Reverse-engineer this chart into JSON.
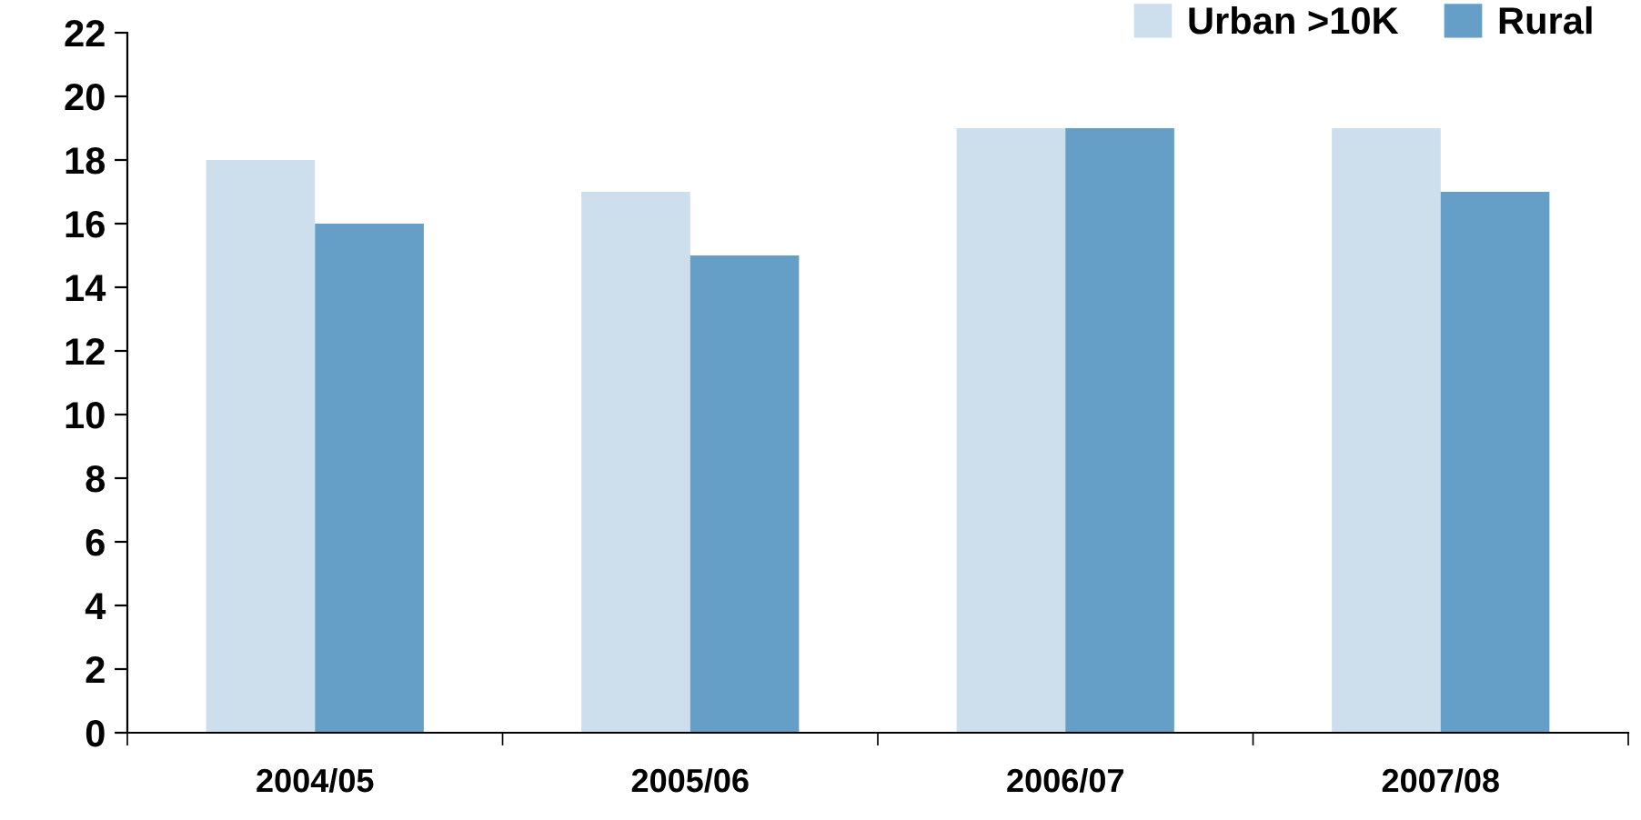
{
  "chart_data": {
    "type": "bar",
    "categories": [
      "2004/05",
      "2005/06",
      "2006/07",
      "2007/08"
    ],
    "series": [
      {
        "name": "Urban >10K",
        "color": "#cddeed",
        "values": [
          18,
          17,
          19,
          19
        ]
      },
      {
        "name": "Rural",
        "color": "#659fc8",
        "values": [
          16,
          15,
          19,
          17
        ]
      }
    ],
    "ylim": [
      0,
      22
    ],
    "yticks": [
      0,
      2,
      4,
      6,
      8,
      10,
      12,
      14,
      16,
      18,
      20,
      22
    ],
    "grid": false,
    "legend": "top right"
  }
}
